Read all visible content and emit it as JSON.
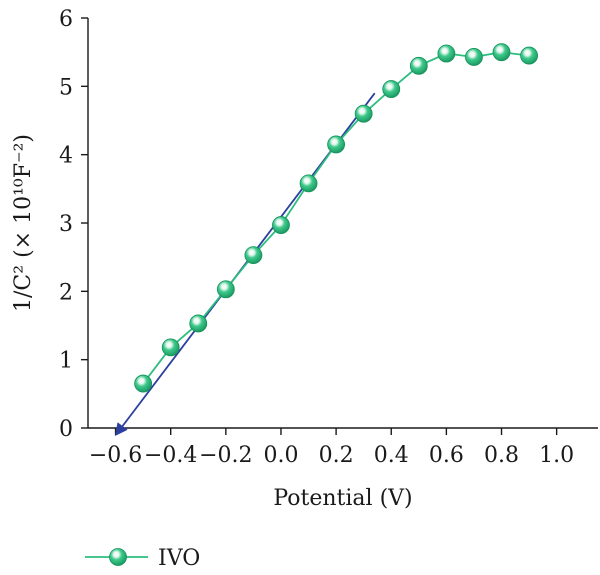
{
  "chart_data": {
    "type": "scatter",
    "xlabel": "Potential (V)",
    "ylabel": "1/C² (× 10¹⁰F⁻²)",
    "xlim": [
      -0.7,
      1.15
    ],
    "ylim": [
      0,
      6
    ],
    "x_ticks": [
      -0.6,
      -0.4,
      -0.2,
      0.0,
      0.2,
      0.4,
      0.6,
      0.8,
      1.0
    ],
    "x_tick_labels": [
      "−0.6",
      "−0.4",
      "−0.2",
      "0.0",
      "0.2",
      "0.4",
      "0.6",
      "0.8",
      "1.0"
    ],
    "y_ticks": [
      0,
      1,
      2,
      3,
      4,
      5,
      6
    ],
    "y_tick_labels": [
      "0",
      "1",
      "2",
      "3",
      "4",
      "5",
      "6"
    ],
    "grid": false,
    "legend_position": "bottom-left",
    "series": [
      {
        "name": "IVO",
        "color": "#2dbd7f",
        "marker": "circle",
        "x": [
          -0.5,
          -0.4,
          -0.3,
          -0.2,
          -0.1,
          0.0,
          0.1,
          0.2,
          0.3,
          0.4,
          0.5,
          0.6,
          0.7,
          0.8,
          0.9
        ],
        "y": [
          0.65,
          1.18,
          1.53,
          2.03,
          2.53,
          2.97,
          3.58,
          4.15,
          4.6,
          4.96,
          5.3,
          5.48,
          5.43,
          5.5,
          5.45
        ]
      }
    ],
    "fit_line": {
      "color": "#2b3f9e",
      "x": [
        -0.58,
        0.34
      ],
      "y": [
        0,
        4.9
      ],
      "arrow_at": "start"
    }
  }
}
